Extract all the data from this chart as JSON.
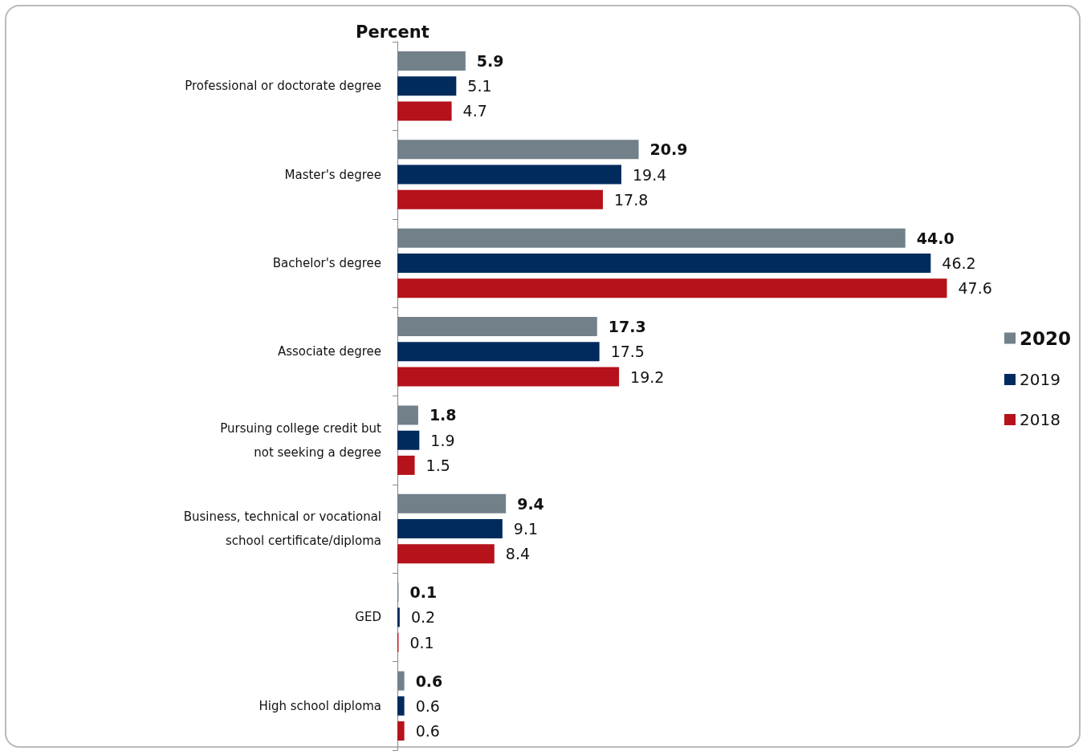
{
  "chart_data": {
    "type": "bar",
    "orientation": "horizontal",
    "title": "Percent",
    "categories": [
      "Professional or doctorate degree",
      "Master's degree",
      "Bachelor's degree",
      "Associate degree",
      "Pursuing college credit but\nnot seeking a degree",
      "Business, technical or vocational\nschool certificate/diploma",
      "GED",
      "High school diploma"
    ],
    "series": [
      {
        "name": "2020",
        "color": "#72808a",
        "values": [
          5.9,
          20.9,
          44.0,
          17.3,
          1.8,
          9.4,
          0.1,
          0.6
        ],
        "value_labels": [
          "5.9",
          "20.9",
          "44.0",
          "17.3",
          "1.8",
          "9.4",
          "0.1",
          "0.6"
        ]
      },
      {
        "name": "2019",
        "color": "#002b5c",
        "values": [
          5.1,
          19.4,
          46.2,
          17.5,
          1.9,
          9.1,
          0.2,
          0.6
        ]
      },
      {
        "name": "2018",
        "color": "#b5121b",
        "values": [
          4.7,
          17.8,
          47.6,
          19.2,
          1.5,
          8.4,
          0.1,
          0.6
        ]
      }
    ],
    "data_labels": true,
    "legend": "right",
    "grid": false
  }
}
